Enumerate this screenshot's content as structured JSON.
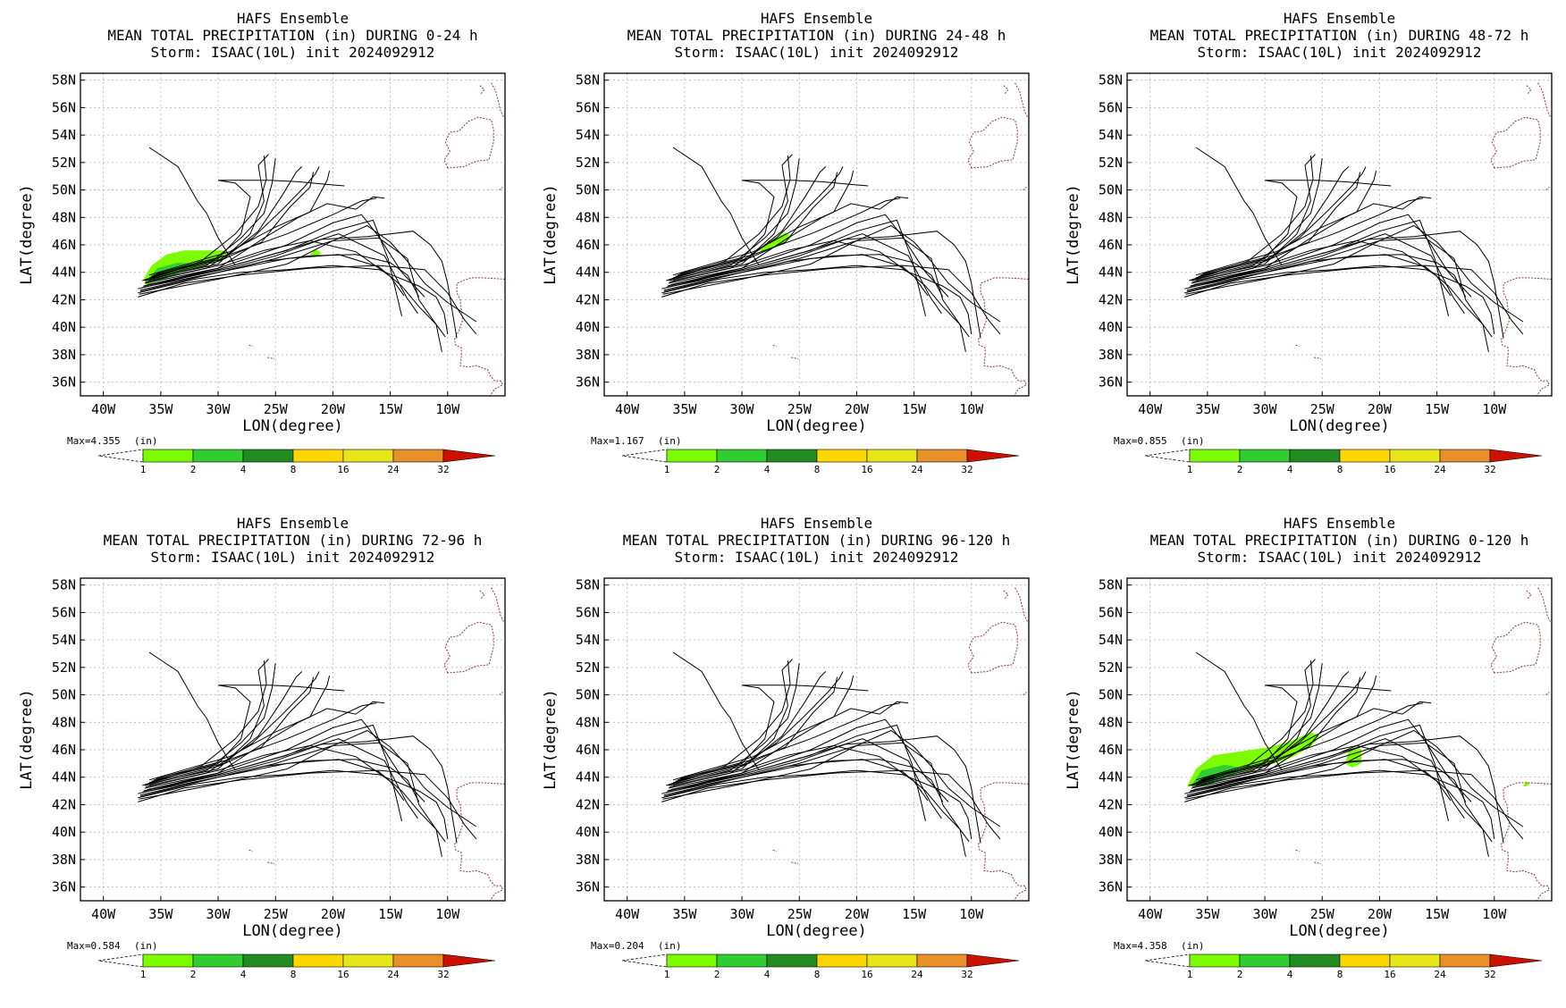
{
  "figure": {
    "lon_ticks": [
      "40W",
      "35W",
      "30W",
      "25W",
      "20W",
      "15W",
      "10W"
    ],
    "lat_ticks": [
      "58N",
      "56N",
      "54N",
      "52N",
      "50N",
      "48N",
      "46N",
      "44N",
      "42N",
      "40N",
      "38N",
      "36N"
    ],
    "xlabel": "LON(degree)",
    "ylabel": "LAT(degree)",
    "units_label": "(in)",
    "colorbar_levels": [
      "1",
      "2",
      "4",
      "8",
      "16",
      "24",
      "32"
    ],
    "colorbar_colors": [
      "#7cfc00",
      "#32cd32",
      "#228b22",
      "#ffd700",
      "#e6e619",
      "#e8902a",
      "#cc1100"
    ],
    "title_line1": "HAFS Ensemble",
    "title_line3": "Storm: ISAAC(10L) init 2024092912"
  },
  "chart_data": [
    {
      "type": "heatmap",
      "title": "MEAN TOTAL PRECIPITATION (in) DURING  0-24 h",
      "max_label": "Max=4.355",
      "xlabel": "LON(degree)",
      "ylabel": "LAT(degree)",
      "xlim": [
        -42,
        -5
      ],
      "ylim": [
        35,
        58.5
      ],
      "precip_areas": [
        {
          "category": "1-2 in",
          "lonlat": [
            [
              -36.5,
              43.5
            ],
            [
              -35.8,
              44.5
            ],
            [
              -34.5,
              45.3
            ],
            [
              -33,
              45.6
            ],
            [
              -31,
              45.6
            ],
            [
              -29.5,
              45.6
            ],
            [
              -29,
              45.3
            ],
            [
              -30,
              44.8
            ],
            [
              -32,
              44.3
            ],
            [
              -34,
              43.8
            ],
            [
              -35.5,
              43.3
            ],
            [
              -36.3,
              43.1
            ]
          ]
        },
        {
          "category": "2-4 in",
          "lonlat": [
            [
              -36.2,
              43.4
            ],
            [
              -35.3,
              44.3
            ],
            [
              -33.5,
              44.7
            ],
            [
              -31.5,
              44.6
            ],
            [
              -33,
              44.1
            ],
            [
              -35,
              43.4
            ]
          ]
        },
        {
          "category": "1-2 in",
          "lonlat": [
            [
              -22,
              45.3
            ],
            [
              -21.5,
              45.7
            ],
            [
              -21,
              45.4
            ],
            [
              -21.6,
              45.1
            ]
          ]
        }
      ]
    },
    {
      "type": "heatmap",
      "title": "MEAN TOTAL PRECIPITATION (in) DURING 24-48 h",
      "max_label": "Max=1.167",
      "xlabel": "LON(degree)",
      "ylabel": "LAT(degree)",
      "xlim": [
        -42,
        -5
      ],
      "ylim": [
        35,
        58.5
      ],
      "precip_areas": [
        {
          "category": "1-2 in",
          "lonlat": [
            [
              -28.5,
              45.6
            ],
            [
              -27.5,
              46.3
            ],
            [
              -26.2,
              46.9
            ],
            [
              -25.6,
              46.6
            ],
            [
              -26.5,
              46
            ],
            [
              -28,
              45.5
            ]
          ]
        }
      ]
    },
    {
      "type": "heatmap",
      "title": "MEAN TOTAL PRECIPITATION (in) DURING 48-72 h",
      "max_label": "Max=0.855",
      "xlabel": "LON(degree)",
      "ylabel": "LAT(degree)",
      "xlim": [
        -42,
        -5
      ],
      "ylim": [
        35,
        58.5
      ],
      "precip_areas": []
    },
    {
      "type": "heatmap",
      "title": "MEAN TOTAL PRECIPITATION (in) DURING 72-96 h",
      "max_label": "Max=0.584",
      "xlabel": "LON(degree)",
      "ylabel": "LAT(degree)",
      "xlim": [
        -42,
        -5
      ],
      "ylim": [
        35,
        58.5
      ],
      "precip_areas": []
    },
    {
      "type": "heatmap",
      "title": "MEAN TOTAL PRECIPITATION (in) DURING 96-120 h",
      "max_label": "Max=0.204",
      "xlabel": "LON(degree)",
      "ylabel": "LAT(degree)",
      "xlim": [
        -42,
        -5
      ],
      "ylim": [
        35,
        58.5
      ],
      "precip_areas": []
    },
    {
      "type": "heatmap",
      "title": "MEAN TOTAL PRECIPITATION (in) DURING 0-120 h",
      "max_label": "Max=4.358",
      "xlabel": "LON(degree)",
      "ylabel": "LAT(degree)",
      "xlim": [
        -42,
        -5
      ],
      "ylim": [
        35,
        58.5
      ],
      "precip_areas": [
        {
          "category": "1-2 in",
          "lonlat": [
            [
              -36.8,
              43.3
            ],
            [
              -36,
              44.6
            ],
            [
              -34.5,
              45.6
            ],
            [
              -32,
              45.9
            ],
            [
              -29.5,
              46.2
            ],
            [
              -27.5,
              46.7
            ],
            [
              -26,
              47.3
            ],
            [
              -25.2,
              47
            ],
            [
              -26,
              46.2
            ],
            [
              -28,
              45.3
            ],
            [
              -30.5,
              44.7
            ],
            [
              -33,
              44.2
            ],
            [
              -35,
              43.4
            ]
          ]
        },
        {
          "category": "2-4 in",
          "lonlat": [
            [
              -36.4,
              43.4
            ],
            [
              -35.5,
              44.5
            ],
            [
              -33.5,
              44.9
            ],
            [
              -31.5,
              44.6
            ],
            [
              -33,
              44.1
            ],
            [
              -35,
              43.4
            ]
          ]
        },
        {
          "category": "1-2 in",
          "lonlat": [
            [
              -23,
              45
            ],
            [
              -22.7,
              45.9
            ],
            [
              -21.6,
              46.1
            ],
            [
              -21.6,
              45
            ],
            [
              -22.4,
              44.7
            ]
          ]
        },
        {
          "category": "1-2 in",
          "lonlat": [
            [
              -7.5,
              43.4
            ],
            [
              -7.2,
              43.7
            ],
            [
              -6.9,
              43.5
            ],
            [
              -7.3,
              43.3
            ]
          ]
        }
      ]
    }
  ]
}
